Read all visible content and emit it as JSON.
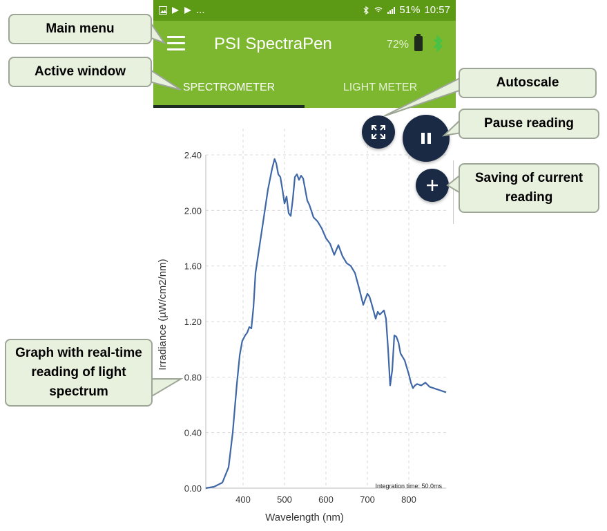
{
  "status_bar": {
    "battery": "51%",
    "time": "10:57",
    "ellipsis": "..."
  },
  "app": {
    "title": "PSI SpectraPen",
    "battery_level": "72%"
  },
  "tabs": [
    {
      "label": "SPECTROMETER",
      "active": true
    },
    {
      "label": "LIGHT METER",
      "active": false
    }
  ],
  "icons": {
    "menu": "hamburger-icon",
    "autoscale": "expand-icon",
    "pause": "pause-icon",
    "save": "plus-icon",
    "bluetooth": "bluetooth-icon",
    "battery": "battery-icon"
  },
  "colors": {
    "status_bar": "#5c9a16",
    "app_bar": "#7cb72f",
    "fab": "#1a2a44",
    "line": "#3f66a6",
    "callout_bg": "#e8f1de",
    "callout_border": "#9da596"
  },
  "callouts": {
    "main_menu": "Main menu",
    "active_window": "Active window",
    "autoscale": "Autoscale",
    "pause_reading": "Pause reading",
    "saving": "Saving of current reading",
    "graph": "Graph with real-time reading of light spectrum"
  },
  "chart_data": {
    "type": "line",
    "xlabel": "Wavelength (nm)",
    "ylabel": "Irradiance (µW/cm2/nm)",
    "xlim": [
      310,
      890
    ],
    "ylim": [
      0,
      2.4
    ],
    "x_ticks": [
      400,
      500,
      600,
      700,
      800
    ],
    "y_ticks": [
      0.0,
      0.4,
      0.8,
      1.2,
      1.6,
      2.0,
      2.4
    ],
    "y_tick_labels": [
      "0.00",
      "0.40",
      "0.80",
      "1.20",
      "1.60",
      "2.00",
      "2.40"
    ],
    "grid": true,
    "annotation": "Integration time: 50.0ms",
    "series": [
      {
        "x": [
          310,
          330,
          350,
          365,
          375,
          385,
          392,
          398,
          405,
          410,
          415,
          420,
          425,
          430,
          440,
          450,
          460,
          470,
          476,
          480,
          485,
          490,
          495,
          500,
          505,
          510,
          515,
          520,
          525,
          530,
          535,
          540,
          545,
          550,
          555,
          560,
          570,
          580,
          590,
          600,
          610,
          620,
          630,
          640,
          650,
          660,
          670,
          680,
          690,
          695,
          700,
          705,
          710,
          720,
          725,
          730,
          740,
          745,
          750,
          755,
          760,
          765,
          770,
          775,
          780,
          790,
          800,
          805,
          810,
          815,
          820,
          830,
          840,
          850,
          860,
          870,
          880,
          890
        ],
        "y": [
          0.0,
          0.01,
          0.04,
          0.15,
          0.4,
          0.75,
          0.96,
          1.06,
          1.1,
          1.12,
          1.16,
          1.15,
          1.3,
          1.55,
          1.75,
          1.95,
          2.15,
          2.3,
          2.37,
          2.34,
          2.26,
          2.24,
          2.15,
          2.05,
          2.1,
          1.98,
          1.96,
          2.08,
          2.24,
          2.26,
          2.22,
          2.25,
          2.23,
          2.15,
          2.07,
          2.04,
          1.95,
          1.92,
          1.87,
          1.8,
          1.76,
          1.68,
          1.75,
          1.67,
          1.62,
          1.6,
          1.55,
          1.44,
          1.32,
          1.36,
          1.4,
          1.38,
          1.33,
          1.22,
          1.27,
          1.25,
          1.28,
          1.22,
          1.0,
          0.74,
          0.85,
          1.1,
          1.09,
          1.05,
          0.97,
          0.92,
          0.82,
          0.76,
          0.72,
          0.74,
          0.75,
          0.74,
          0.76,
          0.73,
          0.72,
          0.71,
          0.7,
          0.69
        ]
      }
    ]
  }
}
